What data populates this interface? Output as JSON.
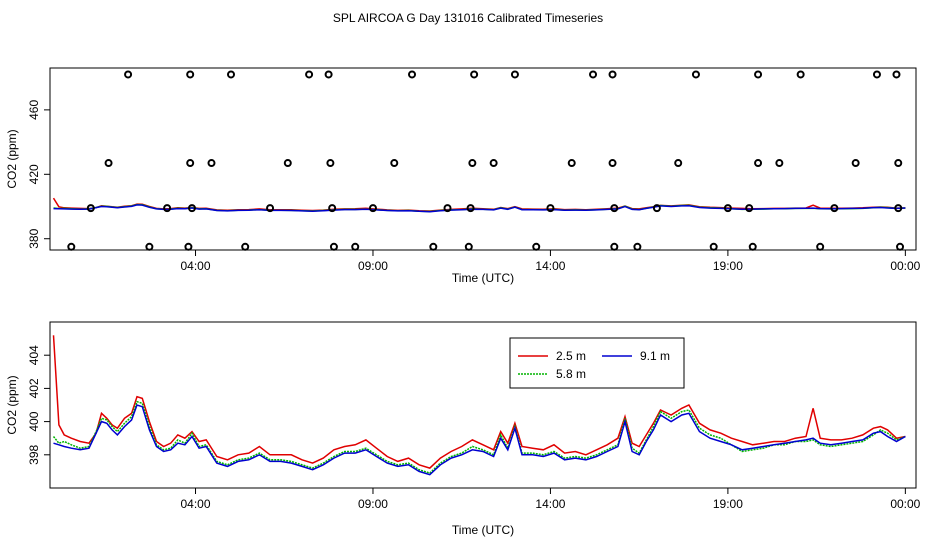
{
  "title": "SPL AIRCOA G  Day 131016  Calibrated Timeseries",
  "colors": {
    "2.5 m": "#e00000",
    "5.8 m": "#00b400",
    "9.1 m": "#0000d0",
    "markers": "#000000"
  },
  "chart_data": [
    {
      "type": "line",
      "xlabel": "Time (UTC)",
      "ylabel": "CO2 (ppm)",
      "x_tick_labels": [
        "04:00",
        "09:00",
        "14:00",
        "19:00",
        "00:00"
      ],
      "x_ticks_hours": [
        4,
        9,
        14,
        19,
        24
      ],
      "y_tick_labels": [
        "380",
        "420",
        "460"
      ],
      "y_ticks": [
        380,
        420,
        460
      ],
      "xlim_hours": [
        -0.1,
        24.3
      ],
      "ylim": [
        373,
        486
      ],
      "grid": false,
      "markers": {
        "symbol": "open-circle",
        "levels": [
          375,
          399,
          427,
          482
        ],
        "x_hours": {
          "482": [
            2.1,
            3.85,
            5.0,
            7.2,
            7.75,
            10.1,
            11.85,
            13.0,
            15.2,
            15.75,
            18.1,
            19.85,
            21.05,
            23.2,
            23.75
          ],
          "427": [
            1.55,
            3.85,
            4.45,
            6.6,
            7.8,
            9.6,
            11.8,
            12.4,
            14.6,
            15.75,
            17.6,
            19.85,
            20.45,
            22.6,
            23.8
          ],
          "399": [
            1.05,
            3.2,
            3.9,
            6.1,
            7.85,
            9.0,
            11.1,
            11.75,
            14.0,
            15.8,
            17.0,
            19.0,
            19.6,
            22.0,
            23.8
          ],
          "375": [
            0.5,
            2.7,
            3.8,
            5.4,
            7.9,
            8.5,
            10.7,
            11.7,
            13.6,
            15.8,
            16.45,
            18.6,
            19.7,
            21.6,
            23.85
          ]
        }
      },
      "series_note": "same three series as lower panel",
      "series": [
        "2.5 m",
        "5.8 m",
        "9.1 m"
      ]
    },
    {
      "type": "line",
      "xlabel": "Time (UTC)",
      "ylabel": "CO2 (ppm)",
      "x_tick_labels": [
        "04:00",
        "09:00",
        "14:00",
        "19:00",
        "00:00"
      ],
      "x_ticks_hours": [
        4,
        9,
        14,
        19,
        24
      ],
      "y_tick_labels": [
        "398",
        "400",
        "402",
        "404"
      ],
      "y_ticks": [
        398,
        400,
        402,
        404
      ],
      "xlim_hours": [
        -0.1,
        24.3
      ],
      "ylim": [
        396.0,
        406.0
      ],
      "grid": false,
      "legend_position": "top-center",
      "x_hours": [
        0.0,
        0.15,
        0.3,
        0.5,
        0.75,
        1.0,
        1.2,
        1.35,
        1.5,
        1.65,
        1.8,
        2.0,
        2.2,
        2.35,
        2.5,
        2.7,
        2.9,
        3.1,
        3.3,
        3.5,
        3.7,
        3.9,
        4.1,
        4.3,
        4.6,
        4.9,
        5.2,
        5.5,
        5.8,
        6.1,
        6.4,
        6.7,
        7.0,
        7.3,
        7.6,
        7.9,
        8.2,
        8.5,
        8.8,
        9.1,
        9.4,
        9.7,
        10.0,
        10.3,
        10.6,
        10.9,
        11.2,
        11.5,
        11.8,
        12.1,
        12.4,
        12.6,
        12.8,
        13.0,
        13.2,
        13.5,
        13.8,
        14.1,
        14.4,
        14.7,
        15.0,
        15.3,
        15.6,
        15.9,
        16.1,
        16.3,
        16.5,
        16.7,
        16.9,
        17.1,
        17.4,
        17.7,
        17.9,
        18.2,
        18.5,
        18.8,
        19.1,
        19.4,
        19.7,
        20.0,
        20.3,
        20.6,
        20.9,
        21.2,
        21.4,
        21.6,
        21.9,
        22.2,
        22.5,
        22.8,
        23.1,
        23.3,
        23.5,
        23.75,
        24.0
      ],
      "series": [
        {
          "name": "2.5 m",
          "values": [
            405.2,
            399.8,
            399.2,
            399.0,
            398.8,
            398.7,
            399.3,
            400.5,
            400.2,
            399.8,
            399.6,
            400.2,
            400.5,
            401.5,
            401.4,
            400.0,
            398.8,
            398.5,
            398.7,
            399.2,
            399.0,
            399.4,
            398.8,
            398.9,
            397.9,
            397.7,
            398.0,
            398.1,
            398.5,
            398.0,
            398.0,
            398.0,
            397.7,
            397.5,
            397.8,
            398.3,
            398.5,
            398.6,
            398.9,
            398.4,
            397.9,
            397.6,
            397.8,
            397.4,
            397.2,
            397.8,
            398.2,
            398.5,
            398.9,
            398.6,
            398.3,
            399.4,
            398.7,
            399.9,
            398.5,
            398.4,
            398.3,
            398.6,
            398.1,
            398.2,
            398.0,
            398.3,
            398.6,
            399.0,
            400.3,
            398.7,
            398.5,
            399.2,
            399.9,
            400.7,
            400.4,
            400.8,
            401.0,
            399.9,
            399.5,
            399.3,
            399.0,
            398.8,
            398.6,
            398.7,
            398.8,
            398.8,
            399.0,
            399.1,
            400.8,
            399.0,
            398.9,
            398.9,
            399.0,
            399.2,
            399.6,
            399.7,
            399.5,
            399.0,
            399.1
          ]
        },
        {
          "name": "5.8 m",
          "values": [
            399.1,
            398.7,
            398.8,
            398.6,
            398.4,
            398.5,
            399.4,
            400.2,
            400.1,
            399.7,
            399.4,
            399.9,
            400.3,
            401.2,
            401.1,
            399.7,
            398.6,
            398.3,
            398.4,
            398.9,
            398.7,
            399.3,
            398.5,
            398.6,
            397.6,
            397.4,
            397.7,
            397.8,
            398.1,
            397.7,
            397.7,
            397.6,
            397.4,
            397.2,
            397.5,
            397.9,
            398.2,
            398.2,
            398.4,
            398.0,
            397.6,
            397.4,
            397.5,
            397.1,
            396.9,
            397.5,
            397.9,
            398.1,
            398.5,
            398.3,
            398.0,
            399.2,
            398.4,
            399.7,
            398.1,
            398.1,
            398.0,
            398.2,
            397.8,
            397.9,
            397.8,
            398.0,
            398.3,
            398.6,
            400.2,
            398.4,
            398.1,
            398.9,
            399.7,
            400.6,
            400.2,
            400.6,
            400.7,
            399.6,
            399.2,
            399.0,
            398.6,
            398.2,
            398.3,
            398.4,
            398.6,
            398.6,
            398.8,
            398.8,
            398.9,
            398.6,
            398.5,
            398.6,
            398.7,
            398.8,
            399.2,
            399.5,
            399.3,
            398.9,
            399.1
          ]
        },
        {
          "name": "9.1 m",
          "values": [
            398.7,
            398.6,
            398.5,
            398.4,
            398.3,
            398.4,
            399.3,
            400.0,
            399.9,
            399.5,
            399.2,
            399.7,
            400.1,
            401.0,
            400.9,
            399.5,
            398.5,
            398.2,
            398.3,
            398.7,
            398.6,
            399.1,
            398.4,
            398.5,
            397.5,
            397.3,
            397.6,
            397.7,
            398.0,
            397.6,
            397.6,
            397.5,
            397.3,
            397.1,
            397.4,
            397.8,
            398.1,
            398.1,
            398.3,
            397.9,
            397.5,
            397.3,
            397.4,
            397.0,
            396.8,
            397.4,
            397.8,
            398.0,
            398.3,
            398.2,
            397.9,
            399.0,
            398.3,
            399.6,
            398.0,
            398.0,
            397.9,
            398.1,
            397.7,
            397.8,
            397.7,
            397.9,
            398.2,
            398.5,
            400.0,
            398.2,
            398.0,
            398.8,
            399.5,
            400.4,
            400.0,
            400.4,
            400.5,
            399.4,
            399.0,
            398.8,
            398.6,
            398.3,
            398.4,
            398.5,
            398.6,
            398.7,
            398.8,
            398.9,
            399.0,
            398.7,
            398.6,
            398.7,
            398.8,
            398.9,
            399.3,
            399.4,
            399.1,
            398.8,
            399.1
          ]
        }
      ]
    }
  ]
}
